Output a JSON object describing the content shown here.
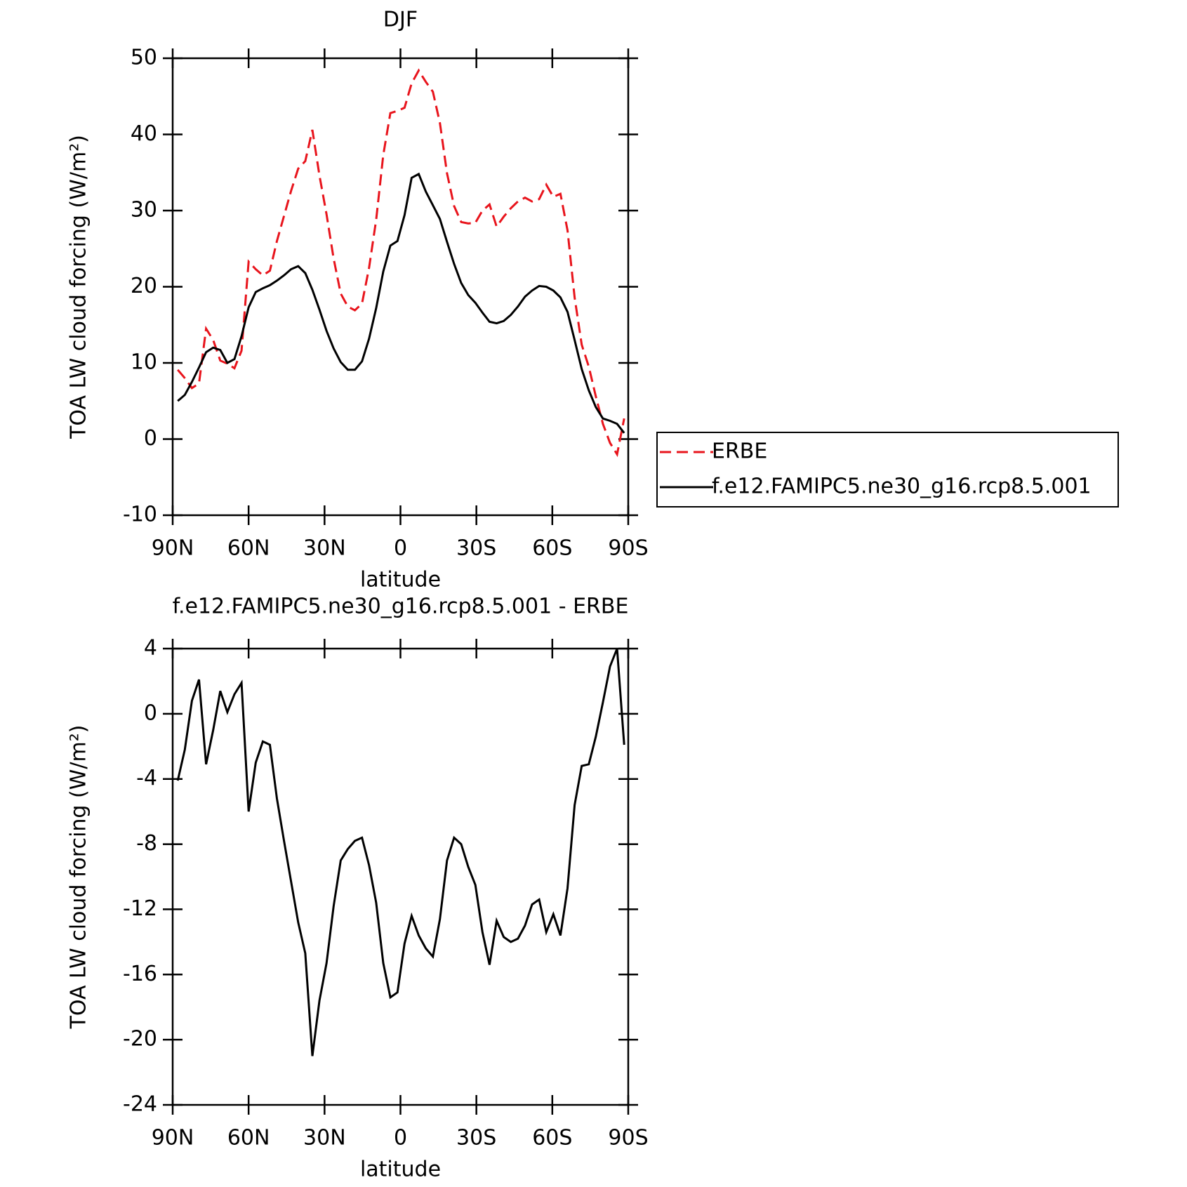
{
  "chart_data": [
    {
      "type": "line",
      "title": "DJF",
      "x_label": "latitude",
      "y_label": "TOA LW cloud forcing (W/m²)",
      "x": [
        88,
        85.2,
        82.4,
        79.6,
        76.8,
        74,
        71.2,
        68.4,
        65.6,
        62.8,
        60,
        57.2,
        54.4,
        51.6,
        48.8,
        46,
        43.2,
        40.4,
        37.6,
        34.8,
        32,
        29.2,
        26.4,
        23.6,
        20.8,
        18,
        15.2,
        12.4,
        9.6,
        6.8,
        4,
        1.2,
        -1.6,
        -4.4,
        -7.2,
        -10,
        -12.8,
        -15.6,
        -18.4,
        -21.2,
        -24,
        -26.8,
        -29.6,
        -32.4,
        -35.2,
        -38,
        -40.8,
        -43.6,
        -46.4,
        -49.2,
        -52,
        -54.8,
        -57.6,
        -60.4,
        -63.2,
        -66,
        -68.8,
        -71.6,
        -74.4,
        -77.2,
        -80,
        -82.8,
        -85.6,
        -88.4
      ],
      "series": [
        {
          "name": "ERBE",
          "color": "#e8141c",
          "style": "dashed",
          "values": [
            9.1,
            8.0,
            6.7,
            7.3,
            14.5,
            13.0,
            10.3,
            9.9,
            9.3,
            11.6,
            23.3,
            22.3,
            21.5,
            22.1,
            26.0,
            29.3,
            32.6,
            35.5,
            36.5,
            40.6,
            34.6,
            29.5,
            23.7,
            19.1,
            17.4,
            16.9,
            17.8,
            22.5,
            28.8,
            37.3,
            42.8,
            43.1,
            43.5,
            46.7,
            48.4,
            46.9,
            45.6,
            41.5,
            34.9,
            30.6,
            28.5,
            28.3,
            28.4,
            30.0,
            30.8,
            27.9,
            29.2,
            30.3,
            31.2,
            31.7,
            31.2,
            31.5,
            33.4,
            31.8,
            32.2,
            27.4,
            18.6,
            12.4,
            9.5,
            5.6,
            2.0,
            -0.5,
            -2.0,
            2.7
          ]
        },
        {
          "name": "f.e12.FAMIPC5.ne30_g16.rcp8.5.001",
          "color": "#000000",
          "style": "solid",
          "values": [
            5.0,
            5.8,
            7.5,
            9.4,
            11.4,
            12.0,
            11.7,
            10.0,
            10.5,
            13.5,
            17.3,
            19.3,
            19.8,
            20.2,
            20.8,
            21.5,
            22.3,
            22.7,
            21.8,
            19.6,
            17.0,
            14.2,
            11.9,
            10.1,
            9.1,
            9.1,
            10.2,
            13.2,
            17.2,
            22.0,
            25.4,
            26.0,
            29.4,
            34.3,
            34.8,
            32.5,
            30.7,
            28.9,
            25.9,
            23.0,
            20.5,
            18.9,
            17.9,
            16.6,
            15.4,
            15.2,
            15.5,
            16.3,
            17.4,
            18.7,
            19.5,
            20.1,
            20.0,
            19.5,
            18.6,
            16.7,
            13.0,
            9.2,
            6.4,
            4.2,
            2.7,
            2.4,
            2.0,
            0.8
          ]
        }
      ],
      "xlim": [
        90,
        -90
      ],
      "xticks": [
        {
          "value": 90,
          "label": "90N"
        },
        {
          "value": 60,
          "label": "60N"
        },
        {
          "value": 30,
          "label": "30N"
        },
        0,
        {
          "value": -30,
          "label": "30S"
        },
        {
          "value": -60,
          "label": "60S"
        },
        {
          "value": -90,
          "label": "90S"
        }
      ],
      "ylim": [
        -10,
        50
      ],
      "yticks": [
        -10,
        0,
        10,
        20,
        30,
        40,
        50
      ],
      "legend": "right"
    },
    {
      "type": "line",
      "title": "f.e12.FAMIPC5.ne30_g16.rcp8.5.001 - ERBE",
      "x_label": "latitude",
      "y_label": "TOA LW cloud forcing (W/m²)",
      "x": [
        88,
        85.2,
        82.4,
        79.6,
        76.8,
        74,
        71.2,
        68.4,
        65.6,
        62.8,
        60,
        57.2,
        54.4,
        51.6,
        48.8,
        46,
        43.2,
        40.4,
        37.6,
        34.8,
        32,
        29.2,
        26.4,
        23.6,
        20.8,
        18,
        15.2,
        12.4,
        9.6,
        6.8,
        4,
        1.2,
        -1.6,
        -4.4,
        -7.2,
        -10,
        -12.8,
        -15.6,
        -18.4,
        -21.2,
        -24,
        -26.8,
        -29.6,
        -32.4,
        -35.2,
        -38,
        -40.8,
        -43.6,
        -46.4,
        -49.2,
        -52,
        -54.8,
        -57.6,
        -60.4,
        -63.2,
        -66,
        -68.8,
        -71.6,
        -74.4,
        -77.2,
        -80,
        -82.8,
        -85.6,
        -88.4
      ],
      "color": "#000000",
      "values": [
        -4.1,
        -2.2,
        0.8,
        2.1,
        -3.1,
        -1.0,
        1.4,
        0.1,
        1.2,
        1.9,
        -6.0,
        -3.0,
        -1.7,
        -1.9,
        -5.2,
        -7.8,
        -10.3,
        -12.8,
        -14.7,
        -21.0,
        -17.6,
        -15.3,
        -11.8,
        -9.0,
        -8.3,
        -7.8,
        -7.6,
        -9.3,
        -11.6,
        -15.3,
        -17.4,
        -17.1,
        -14.1,
        -12.4,
        -13.6,
        -14.4,
        -14.9,
        -12.6,
        -9.0,
        -7.6,
        -8.0,
        -9.4,
        -10.5,
        -13.4,
        -15.4,
        -12.7,
        -13.7,
        -14.0,
        -13.8,
        -13.0,
        -11.7,
        -11.4,
        -13.4,
        -12.3,
        -13.6,
        -10.7,
        -5.6,
        -3.2,
        -3.1,
        -1.4,
        0.7,
        2.9,
        4.0,
        -1.9
      ],
      "xlim": [
        90,
        -90
      ],
      "xticks": [
        {
          "value": 90,
          "label": "90N"
        },
        {
          "value": 60,
          "label": "60N"
        },
        {
          "value": 30,
          "label": "30N"
        },
        0,
        {
          "value": -30,
          "label": "30S"
        },
        {
          "value": -60,
          "label": "60S"
        },
        {
          "value": -90,
          "label": "90S"
        }
      ],
      "ylim": [
        -24,
        4
      ],
      "yticks": [
        -24,
        -20,
        -16,
        -12,
        -8,
        -4,
        0,
        4
      ]
    }
  ]
}
